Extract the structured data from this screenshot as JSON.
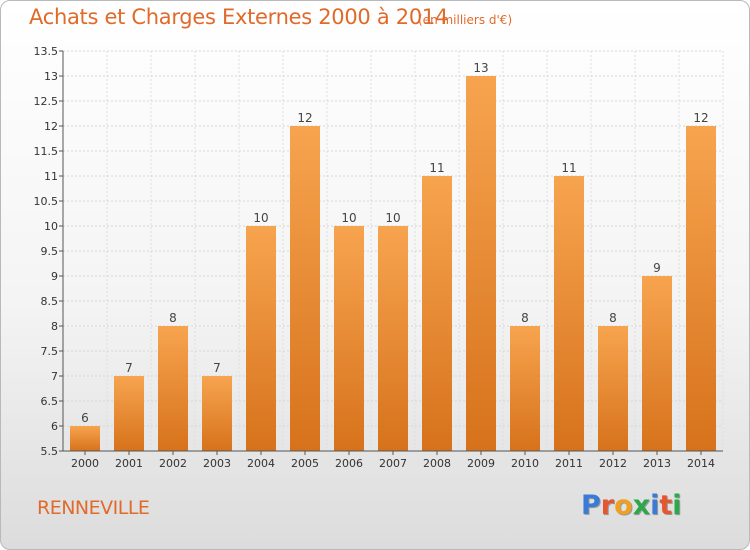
{
  "chart_data": {
    "type": "bar",
    "title": "Achats et Charges Externes 2000 à 2014",
    "subtitle": "(en milliers d'€)",
    "place": "RENNEVILLE",
    "logo": "Proxiti",
    "categories": [
      "2000",
      "2001",
      "2002",
      "2003",
      "2004",
      "2005",
      "2006",
      "2007",
      "2008",
      "2009",
      "2010",
      "2011",
      "2012",
      "2013",
      "2014"
    ],
    "values": [
      6,
      7,
      8,
      7,
      10,
      12,
      10,
      10,
      11,
      13,
      8,
      11,
      8,
      9,
      12
    ],
    "ylim": [
      5.5,
      13.5
    ],
    "yticks": [
      "5.5",
      "6",
      "6.5",
      "7",
      "7.5",
      "8",
      "8.5",
      "9",
      "9.5",
      "10",
      "10.5",
      "11",
      "11.5",
      "12",
      "12.5",
      "13",
      "13.5"
    ],
    "grid": true,
    "bar_color": "#f0902e",
    "title_color": "#e06a2a"
  }
}
